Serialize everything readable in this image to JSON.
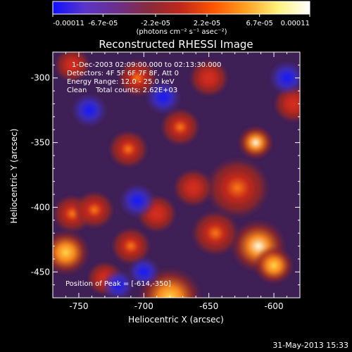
{
  "chart_data": {
    "type": "heatmap",
    "title": "Reconstructed RHESSI Image",
    "xlabel": "Heliocentric X (arcsec)",
    "ylabel": "Heliocentric Y (arcsec)",
    "xlim": [
      -770,
      -580
    ],
    "ylim": [
      -470,
      -280
    ],
    "x_ticks": [
      -750,
      -700,
      -650,
      -600
    ],
    "x_tick_labels": [
      "-750",
      "-700",
      "-650",
      "-600"
    ],
    "y_ticks": [
      -300,
      -350,
      -400,
      -450
    ],
    "y_tick_labels": [
      "-300",
      "-350",
      "-400",
      "-450"
    ],
    "colorbar": {
      "range": [
        -0.00011,
        0.00011
      ],
      "tick_values": [
        -0.00011,
        -6.7e-05,
        -2.2e-05,
        2.2e-05,
        6.7e-05,
        0.00011
      ],
      "tick_labels": [
        "-0.00011",
        "-6.7e-05",
        "-2.2e-05",
        "2.2e-05",
        "6.7e-05",
        "0.00011"
      ],
      "unit_label": "(photons cm⁻² s⁻¹ asec⁻²)",
      "colormap": [
        "#1010ff",
        "#5a36c8",
        "#6b2f8c",
        "#8a2a3c",
        "#c0281a",
        "#ff5500",
        "#ffa020",
        "#fff27a",
        "#ffffff"
      ]
    },
    "annotations": [
      "1-Dec-2003 02:09:00.000 to 02:13:30.000",
      "Detectors: 4F 5F 6F 7F 8F, Att 0",
      "Energy Range: 12.0 - 25.0 keV",
      "Clean    Total counts: 2.62E+03"
    ],
    "peak_label": "Position of Peak = [-614,-350]",
    "peak": [
      -614,
      -350
    ],
    "blobs": [
      {
        "x": -614,
        "y": -350,
        "v": 1.0,
        "s": 9
      },
      {
        "x": -612,
        "y": -430,
        "v": 0.95,
        "s": 14
      },
      {
        "x": -600,
        "y": -445,
        "v": 0.75,
        "s": 10
      },
      {
        "x": -628,
        "y": -385,
        "v": 0.6,
        "s": 16
      },
      {
        "x": -645,
        "y": -420,
        "v": 0.5,
        "s": 12
      },
      {
        "x": -680,
        "y": -470,
        "v": 0.7,
        "s": 16
      },
      {
        "x": -760,
        "y": -435,
        "v": 0.8,
        "s": 12
      },
      {
        "x": -755,
        "y": -405,
        "v": 0.5,
        "s": 10
      },
      {
        "x": -738,
        "y": -402,
        "v": 0.45,
        "s": 10
      },
      {
        "x": -710,
        "y": -430,
        "v": 0.5,
        "s": 10
      },
      {
        "x": -712,
        "y": -355,
        "v": 0.5,
        "s": 10
      },
      {
        "x": -705,
        "y": -300,
        "v": 0.55,
        "s": 10
      },
      {
        "x": -672,
        "y": -338,
        "v": 0.45,
        "s": 10
      },
      {
        "x": -662,
        "y": -385,
        "v": 0.4,
        "s": 10
      },
      {
        "x": -650,
        "y": -300,
        "v": 0.3,
        "s": 10
      },
      {
        "x": -755,
        "y": -290,
        "v": 0.35,
        "s": 9
      },
      {
        "x": -730,
        "y": -455,
        "v": 0.4,
        "s": 9
      },
      {
        "x": -585,
        "y": -320,
        "v": 0.3,
        "s": 10
      },
      {
        "x": -690,
        "y": -405,
        "v": 0.25,
        "s": 10
      },
      {
        "x": -720,
        "y": -460,
        "v": -0.45,
        "s": 8
      },
      {
        "x": -705,
        "y": -395,
        "v": -0.5,
        "s": 9
      },
      {
        "x": -685,
        "y": -315,
        "v": -0.45,
        "s": 9
      },
      {
        "x": -742,
        "y": -325,
        "v": -0.4,
        "s": 9
      },
      {
        "x": -700,
        "y": -450,
        "v": -0.35,
        "s": 8
      },
      {
        "x": -590,
        "y": -300,
        "v": -0.3,
        "s": 9
      }
    ]
  },
  "footer": {
    "timestamp": "31-May-2013 15:33"
  }
}
